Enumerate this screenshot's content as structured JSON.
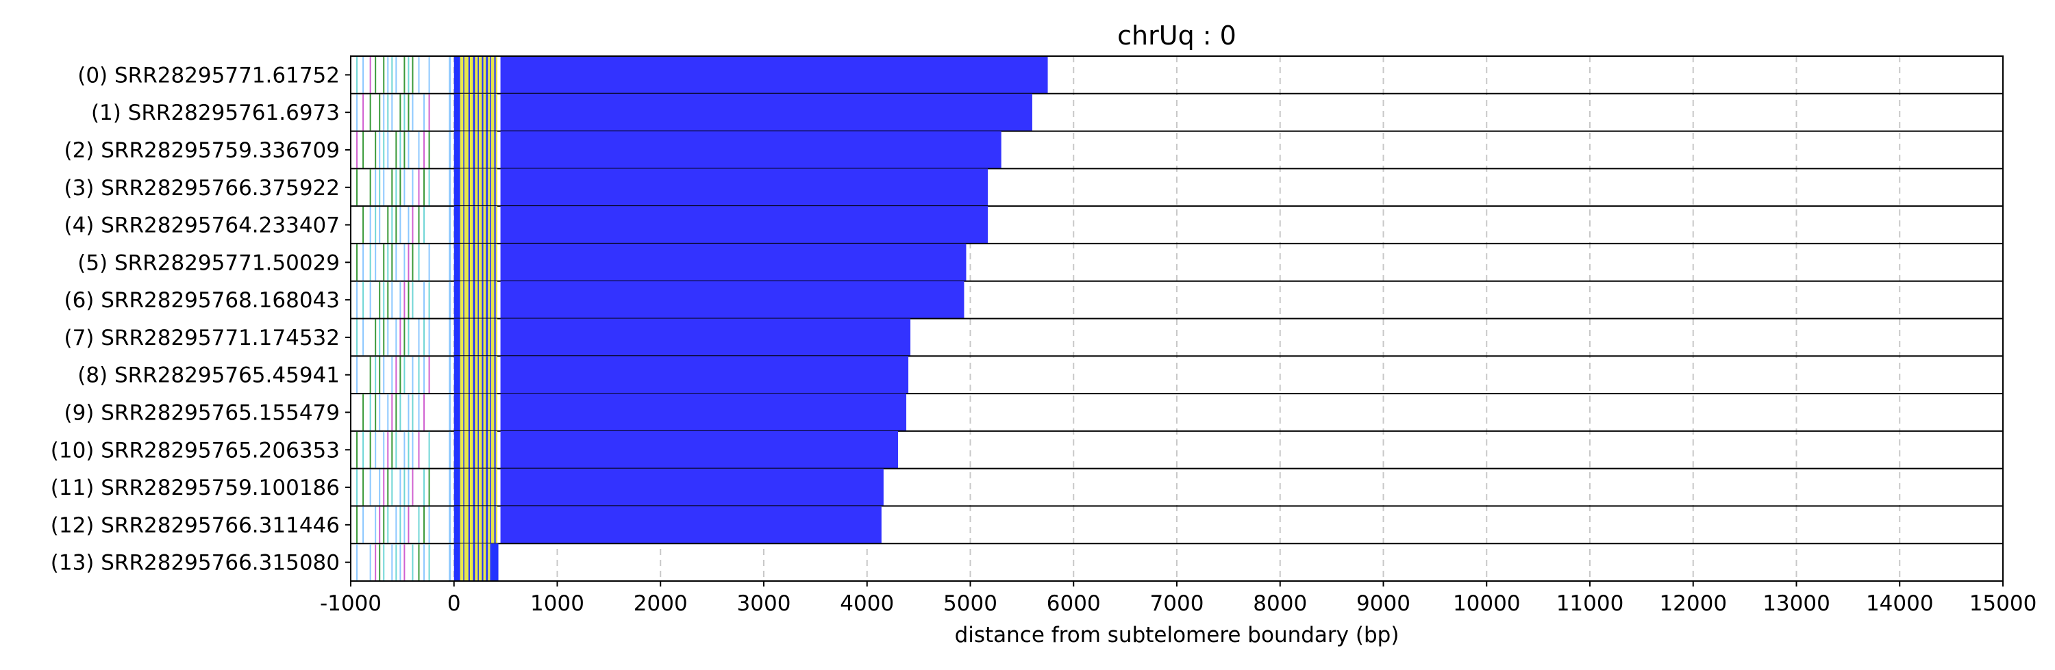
{
  "chart_data": {
    "type": "bar",
    "title": "chrUq : 0",
    "xlabel": "distance from subtelomere boundary (bp)",
    "ylabel": "",
    "xlim": [
      -1000,
      15000
    ],
    "xticks": [
      -1000,
      0,
      1000,
      2000,
      3000,
      4000,
      5000,
      6000,
      7000,
      8000,
      9000,
      10000,
      11000,
      12000,
      13000,
      14000,
      15000
    ],
    "xtick_labels": [
      "-1000",
      "0",
      "1000",
      "2000",
      "3000",
      "4000",
      "5000",
      "6000",
      "7000",
      "8000",
      "9000",
      "10000",
      "11000",
      "12000",
      "13000",
      "14000",
      "15000"
    ],
    "grid": "x-dashed",
    "reads": [
      {
        "label": "(0) SRR28295771.61752",
        "end": 5750
      },
      {
        "label": "(1) SRR28295761.6973",
        "end": 5600
      },
      {
        "label": "(2) SRR28295759.336709",
        "end": 5300
      },
      {
        "label": "(3) SRR28295766.375922",
        "end": 5170
      },
      {
        "label": "(4) SRR28295764.233407",
        "end": 5170
      },
      {
        "label": "(5) SRR28295771.50029",
        "end": 4960
      },
      {
        "label": "(6) SRR28295768.168043",
        "end": 4940
      },
      {
        "label": "(7) SRR28295771.174532",
        "end": 4420
      },
      {
        "label": "(8) SRR28295765.45941",
        "end": 4400
      },
      {
        "label": "(9) SRR28295765.155479",
        "end": 4380
      },
      {
        "label": "(10) SRR28295765.206353",
        "end": 4300
      },
      {
        "label": "(11) SRR28295759.100186",
        "end": 4160
      },
      {
        "label": "(12) SRR28295766.311446",
        "end": 4140
      },
      {
        "label": "(13) SRR28295766.315080",
        "end": 430
      }
    ],
    "main_block_start": 450,
    "colors": {
      "main_block": "#3333ff",
      "yellow_band": "#e8e84a",
      "blue_band": "#2233ff",
      "teal_line": "#6fd6d6",
      "green_line": "#3a9a3a",
      "magenta_line": "#d060d0",
      "light_blue_line": "#8cc8ff",
      "grid": "#c8c8c8"
    }
  }
}
